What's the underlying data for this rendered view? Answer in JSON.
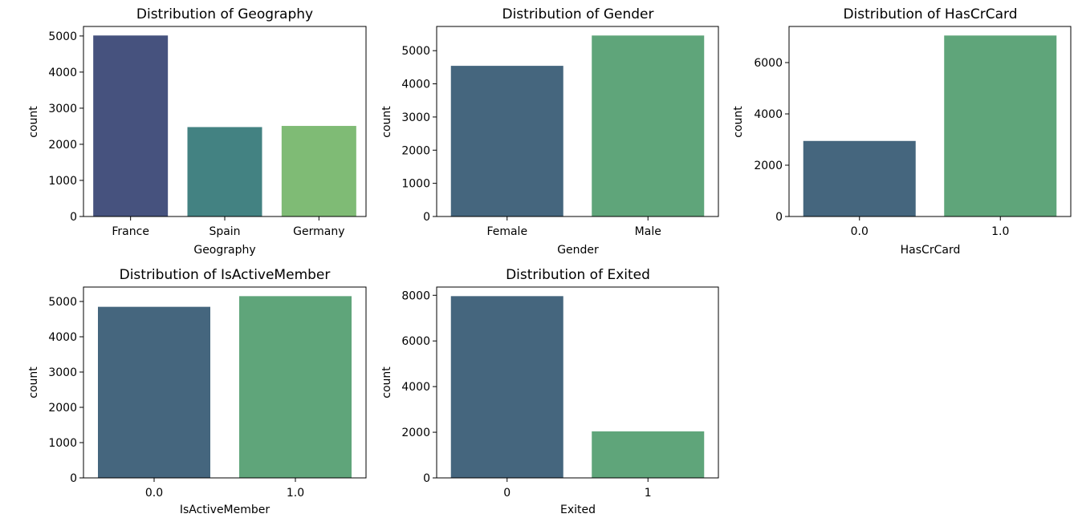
{
  "chart_data": [
    {
      "type": "bar",
      "title": "Distribution of Geography",
      "xlabel": "Geography",
      "ylabel": "count",
      "categories": [
        "France",
        "Spain",
        "Germany"
      ],
      "values": [
        5014,
        2477,
        2509
      ],
      "ylim": [
        0,
        5264
      ],
      "yticks": [
        "0",
        "1000",
        "2000",
        "3000",
        "4000",
        "5000"
      ],
      "yticks_values": [
        0,
        1000,
        2000,
        3000,
        4000,
        5000
      ],
      "colors": [
        "#46527e",
        "#438282",
        "#7fbb75"
      ],
      "grid": false
    },
    {
      "type": "bar",
      "title": "Distribution of Gender",
      "xlabel": "Gender",
      "ylabel": "count",
      "categories": [
        "Female",
        "Male"
      ],
      "values": [
        4543,
        5457
      ],
      "ylim": [
        0,
        5730
      ],
      "yticks": [
        "0",
        "1000",
        "2000",
        "3000",
        "4000",
        "5000"
      ],
      "yticks_values": [
        0,
        1000,
        2000,
        3000,
        4000,
        5000
      ],
      "colors": [
        "#45667e",
        "#5fa57a"
      ],
      "grid": false
    },
    {
      "type": "bar",
      "title": "Distribution of HasCrCard",
      "xlabel": "HasCrCard",
      "ylabel": "count",
      "categories": [
        "0.0",
        "1.0"
      ],
      "values": [
        2945,
        7055
      ],
      "ylim": [
        0,
        7408
      ],
      "yticks": [
        "0",
        "2000",
        "4000",
        "6000"
      ],
      "yticks_values": [
        0,
        2000,
        4000,
        6000
      ],
      "colors": [
        "#45667e",
        "#5fa57a"
      ],
      "grid": false
    },
    {
      "type": "bar",
      "title": "Distribution of IsActiveMember",
      "xlabel": "IsActiveMember",
      "ylabel": "count",
      "categories": [
        "0.0",
        "1.0"
      ],
      "values": [
        4849,
        5151
      ],
      "ylim": [
        0,
        5409
      ],
      "yticks": [
        "0",
        "1000",
        "2000",
        "3000",
        "4000",
        "5000"
      ],
      "yticks_values": [
        0,
        1000,
        2000,
        3000,
        4000,
        5000
      ],
      "colors": [
        "#45667e",
        "#5fa57a"
      ],
      "grid": false
    },
    {
      "type": "bar",
      "title": "Distribution of Exited",
      "xlabel": "Exited",
      "ylabel": "count",
      "categories": [
        "0",
        "1"
      ],
      "values": [
        7963,
        2037
      ],
      "ylim": [
        0,
        8361
      ],
      "yticks": [
        "0",
        "2000",
        "4000",
        "6000",
        "8000"
      ],
      "yticks_values": [
        0,
        2000,
        4000,
        6000,
        8000
      ],
      "colors": [
        "#45667e",
        "#5fa57a"
      ],
      "grid": false
    }
  ]
}
